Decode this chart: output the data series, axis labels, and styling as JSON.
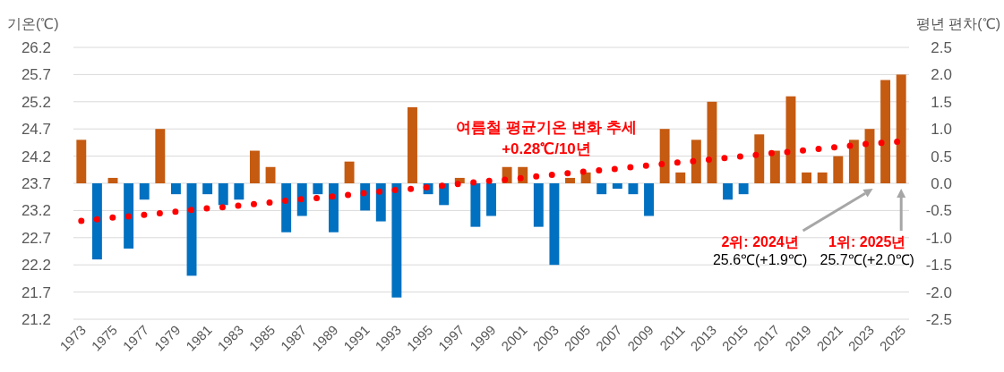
{
  "chart_data": {
    "type": "bar",
    "ylabel": "기온(℃)",
    "y2label": "평년 편차(℃)",
    "categories": [
      "1973",
      null,
      "1975",
      null,
      "1977",
      null,
      "1979",
      null,
      "1981",
      null,
      "1983",
      null,
      "1985",
      null,
      "1987",
      null,
      "1989",
      null,
      "1991",
      null,
      "1993",
      null,
      "1995",
      null,
      "1997",
      null,
      "1999",
      null,
      "2001",
      null,
      "2003",
      null,
      "2005",
      null,
      "2007",
      null,
      "2009",
      null,
      "2011",
      null,
      "2013",
      null,
      "2015",
      null,
      "2017",
      null,
      "2019",
      null,
      "2021",
      null,
      "2023",
      null,
      "2025"
    ],
    "ylim": [
      21.2,
      26.2
    ],
    "yticks": [
      21.2,
      21.7,
      22.2,
      22.7,
      23.2,
      23.7,
      24.2,
      24.7,
      25.2,
      25.7,
      26.2
    ],
    "y2lim": [
      -2.5,
      2.5
    ],
    "y2ticks": [
      -2.5,
      {
        "value": -2,
        "label": "-2.0"
      },
      -1.5,
      {
        "value": -1,
        "label": "-1.0"
      },
      -0.5,
      {
        "value": 0,
        "label": "0.0"
      },
      0.5,
      {
        "value": 1,
        "label": "1.0"
      },
      1.5,
      {
        "value": 2,
        "label": "2.0"
      },
      2.5
    ],
    "grid": "y",
    "series": [
      {
        "axis": "y2",
        "values": [
          0.8,
          -1.4,
          0.1,
          -1.2,
          -0.3,
          1.0,
          -0.2,
          -1.7,
          -0.2,
          -0.4,
          -0.3,
          0.6,
          0.3,
          -0.9,
          -0.6,
          -0.2,
          -0.9,
          0.4,
          -0.5,
          -0.7,
          -2.1,
          1.4,
          -0.2,
          -0.4,
          0.1,
          -0.8,
          -0.6,
          0.3,
          0.3,
          -0.8,
          -1.5,
          0.1,
          0.2,
          -0.2,
          -0.1,
          -0.2,
          -0.6,
          1.0,
          0.2,
          0.8,
          1.5,
          -0.3,
          -0.2,
          0.9,
          0.6,
          1.6,
          0.2,
          0.2,
          0.5,
          0.8,
          1.0,
          1.9,
          2.0
        ],
        "colors": [
          "#c55a11",
          "#0070c0",
          "#c55a11",
          "#0070c0",
          "#0070c0",
          "#c55a11",
          "#0070c0",
          "#0070c0",
          "#0070c0",
          "#0070c0",
          "#0070c0",
          "#c55a11",
          "#c55a11",
          "#0070c0",
          "#0070c0",
          "#0070c0",
          "#0070c0",
          "#c55a11",
          "#0070c0",
          "#0070c0",
          "#0070c0",
          "#c55a11",
          "#0070c0",
          "#0070c0",
          "#c55a11",
          "#0070c0",
          "#0070c0",
          "#c55a11",
          "#c55a11",
          "#0070c0",
          "#0070c0",
          "#c55a11",
          "#c55a11",
          "#0070c0",
          "#0070c0",
          "#0070c0",
          "#0070c0",
          "#c55a11",
          "#c55a11",
          "#c55a11",
          "#c55a11",
          "#0070c0",
          "#0070c0",
          "#c55a11",
          "#c55a11",
          "#c55a11",
          "#c55a11",
          "#c55a11",
          "#c55a11",
          "#c55a11",
          "#c55a11",
          "#c55a11",
          "#c55a11"
        ]
      },
      {
        "type": "line",
        "axis": "y2",
        "values": [
          -0.69,
          -0.66,
          -0.63,
          -0.61,
          -0.58,
          -0.55,
          -0.52,
          -0.49,
          -0.46,
          -0.44,
          -0.41,
          -0.38,
          -0.35,
          -0.32,
          -0.29,
          -0.27,
          -0.24,
          -0.21,
          -0.18,
          -0.15,
          -0.12,
          -0.1,
          -0.07,
          -0.04,
          -0.01,
          0.02,
          0.05,
          0.07,
          0.1,
          0.13,
          0.16,
          0.19,
          0.22,
          0.24,
          0.27,
          0.3,
          0.33,
          0.36,
          0.39,
          0.41,
          0.44,
          0.47,
          0.5,
          0.53,
          0.56,
          0.58,
          0.61,
          0.64,
          0.67,
          0.7,
          0.73,
          0.75,
          0.77
        ],
        "color": "#ff0000",
        "line_style": "dotted"
      }
    ],
    "annotations": [
      "여름철 평균기온 변화 추세",
      "+0.28℃/10년",
      "2위: 2024년\n25.6℃(+1.9℃)",
      "1위: 2025년\n25.7℃(+2.0℃)"
    ]
  }
}
